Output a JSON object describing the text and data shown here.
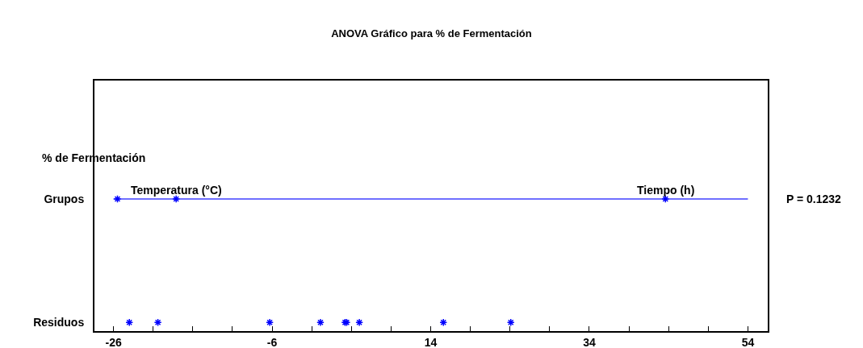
{
  "chart_data": {
    "type": "scatter",
    "orientation": "horizontal",
    "title": "ANOVA Gráfico para % de Fermentación",
    "ylabel": "% de Fermentación",
    "categories": [
      "Grupos",
      "Residuos"
    ],
    "xlim": [
      -28.4,
      56.5
    ],
    "xticks": [
      -26,
      {
        "value": -21,
        "label": null
      },
      {
        "value": -16,
        "label": null
      },
      {
        "value": -11,
        "label": null
      },
      -6,
      {
        "value": -1,
        "label": null
      },
      {
        "value": 4,
        "label": null
      },
      {
        "value": 9,
        "label": null
      },
      14,
      {
        "value": 19,
        "label": null
      },
      {
        "value": 24,
        "label": null
      },
      {
        "value": 29,
        "label": null
      },
      34,
      {
        "value": 39,
        "label": null
      },
      {
        "value": 44,
        "label": null
      },
      {
        "value": 49,
        "label": null
      },
      54
    ],
    "grid": false,
    "marker": "cross",
    "ref_lines": [
      {
        "axis": "y",
        "value": "Grupos",
        "color": "#6f6fff"
      }
    ],
    "series": [
      {
        "color": "#0000ff",
        "values": [
          -25.5,
          -24
        ]
      },
      {
        "color": "#0000ff",
        "values": [
          -18.1,
          -20.4
        ]
      },
      {
        "color": "#0000ff",
        "values": [
          43.6,
          -6.3
        ]
      },
      {
        "color": "#0000ff",
        "values": [
          null,
          0.1
        ]
      },
      {
        "color": "#0000ff",
        "values": [
          null,
          3.2
        ]
      },
      {
        "color": "#0000ff",
        "values": [
          null,
          3.4
        ]
      },
      {
        "color": "#0000ff",
        "values": [
          null,
          5.0
        ]
      },
      {
        "color": "#0000ff",
        "values": [
          null,
          15.6
        ]
      },
      {
        "color": "#0000ff",
        "values": [
          null,
          24.1
        ]
      }
    ],
    "annotations": [
      {
        "text": "Temperatura (°C)",
        "x": -18.1,
        "y": "Grupos"
      },
      {
        "text": "Tiempo (h)",
        "x": 43.6,
        "y": "Grupos"
      },
      "P = 0.1232"
    ]
  }
}
